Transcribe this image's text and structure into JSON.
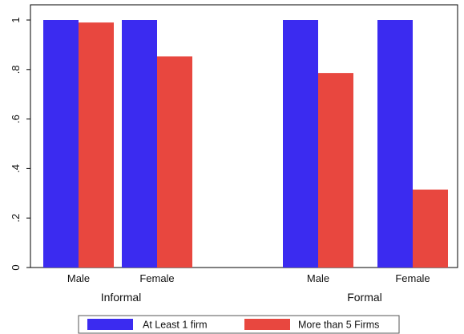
{
  "chart_data": {
    "type": "bar",
    "groups": [
      {
        "label": "Informal",
        "categories": [
          "Male",
          "Female"
        ]
      },
      {
        "label": "Formal",
        "categories": [
          "Male",
          "Female"
        ]
      }
    ],
    "series": [
      {
        "name": "At Least 1 firm",
        "color": "#3b2bf0",
        "values": [
          1.0,
          1.0,
          1.0,
          1.0
        ]
      },
      {
        "name": "More than 5 Firms",
        "color": "#e8473f",
        "values": [
          0.99,
          0.853,
          0.786,
          0.315
        ]
      }
    ],
    "yticks": [
      "0",
      ".2",
      ".4",
      ".6",
      ".8",
      "1"
    ],
    "ylim": [
      0,
      1.05
    ],
    "grid": false,
    "legend_position": "bottom",
    "title": "",
    "xlabel": "",
    "ylabel": ""
  }
}
